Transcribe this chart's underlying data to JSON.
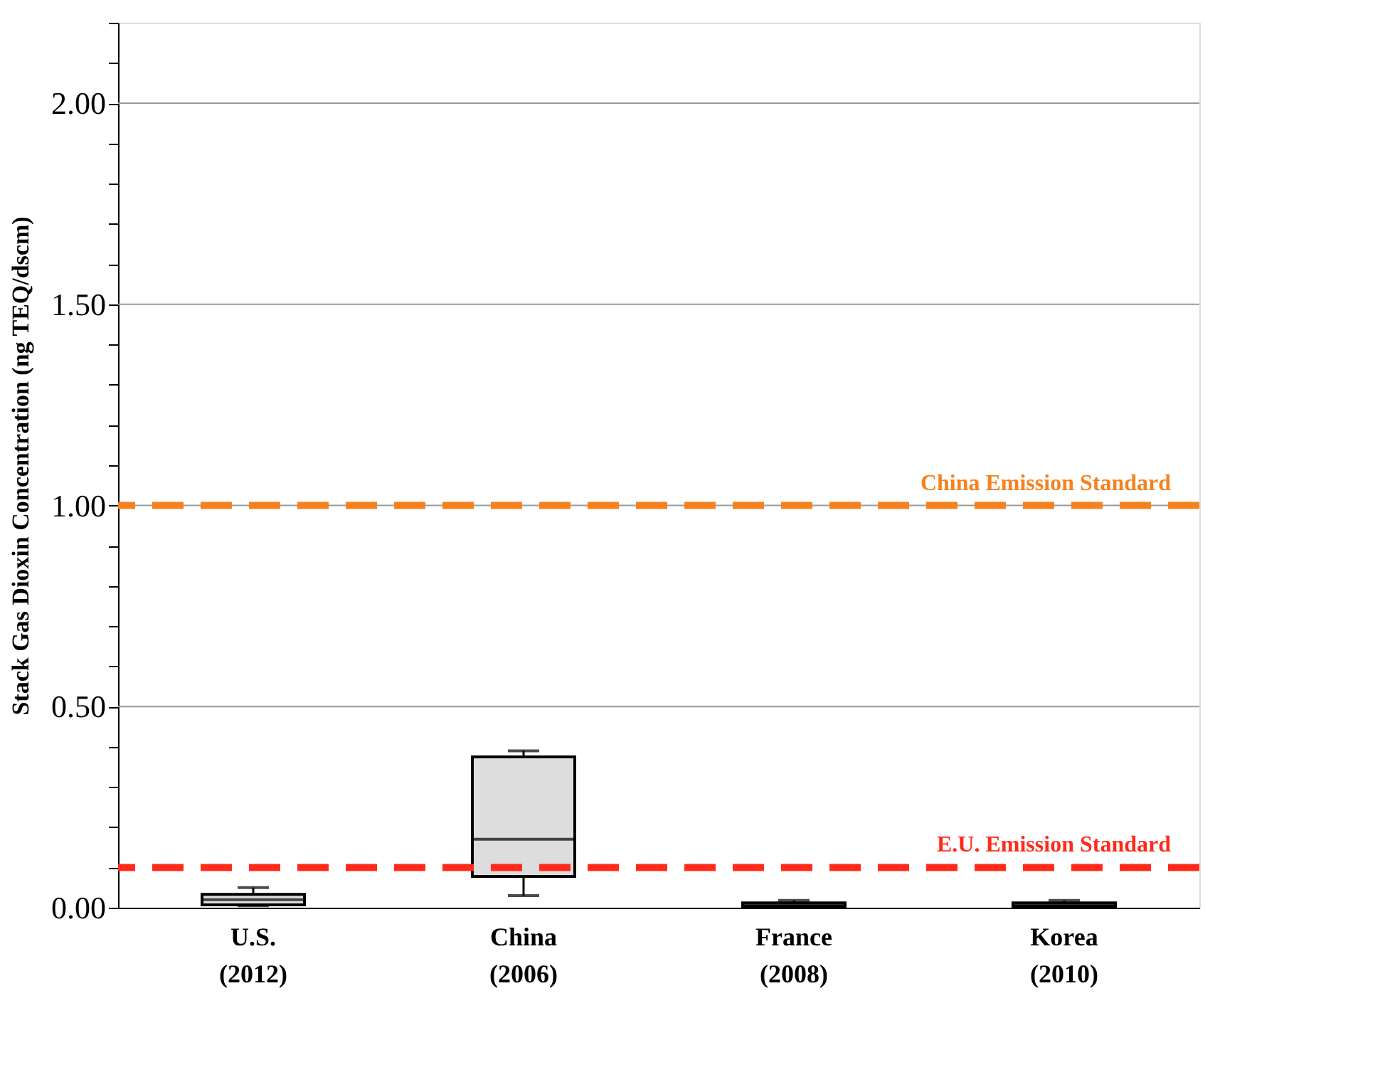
{
  "chart_data": {
    "type": "box",
    "ylabel": "Stack Gas Dioxin Concentration (ng TEQ/dscm)",
    "categories": [
      "U.S.\n(2012)",
      "China\n(2006)",
      "France\n(2008)",
      "Korea\n(2010)"
    ],
    "boxes": [
      {
        "low": 0.005,
        "q1": 0.007,
        "median": 0.02,
        "q3": 0.033,
        "high": 0.05
      },
      {
        "low": 0.03,
        "q1": 0.078,
        "median": 0.17,
        "q3": 0.375,
        "high": 0.39
      },
      {
        "low": 0.003,
        "q1": 0.003,
        "median": 0.008,
        "q3": 0.012,
        "high": 0.018
      },
      {
        "low": 0.003,
        "q1": 0.003,
        "median": 0.008,
        "q3": 0.012,
        "high": 0.018
      }
    ],
    "color": "#dddddd",
    "ylim": [
      0,
      2.2
    ],
    "yticks": [
      {
        "value": 0,
        "label": "0.00"
      },
      {
        "value": 0.1,
        "label": null
      },
      {
        "value": 0.2,
        "label": null
      },
      {
        "value": 0.3,
        "label": null
      },
      {
        "value": 0.4,
        "label": null
      },
      {
        "value": 0.5,
        "label": "0.50"
      },
      {
        "value": 0.6,
        "label": null
      },
      {
        "value": 0.7,
        "label": null
      },
      {
        "value": 0.8,
        "label": null
      },
      {
        "value": 0.9,
        "label": null
      },
      {
        "value": 1.0,
        "label": "1.00"
      },
      {
        "value": 1.1,
        "label": null
      },
      {
        "value": 1.2,
        "label": null
      },
      {
        "value": 1.3,
        "label": null
      },
      {
        "value": 1.4,
        "label": null
      },
      {
        "value": 1.5,
        "label": "1.50"
      },
      {
        "value": 1.6,
        "label": null
      },
      {
        "value": 1.7,
        "label": null
      },
      {
        "value": 1.8,
        "label": null
      },
      {
        "value": 1.9,
        "label": null
      },
      {
        "value": 2.0,
        "label": "2.00"
      },
      {
        "value": 2.1,
        "label": null
      },
      {
        "value": 2.2,
        "label": null
      }
    ],
    "grid": "y",
    "ref_lines": [
      {
        "axis": "y",
        "value": 1.0,
        "label": "China Emission Standard",
        "color": "#f5821f",
        "line_style": "dashed"
      },
      {
        "axis": "y",
        "value": 0.1,
        "label": "E.U. Emission Standard",
        "color": "#ff2a1a",
        "line_style": "dashed"
      }
    ]
  }
}
